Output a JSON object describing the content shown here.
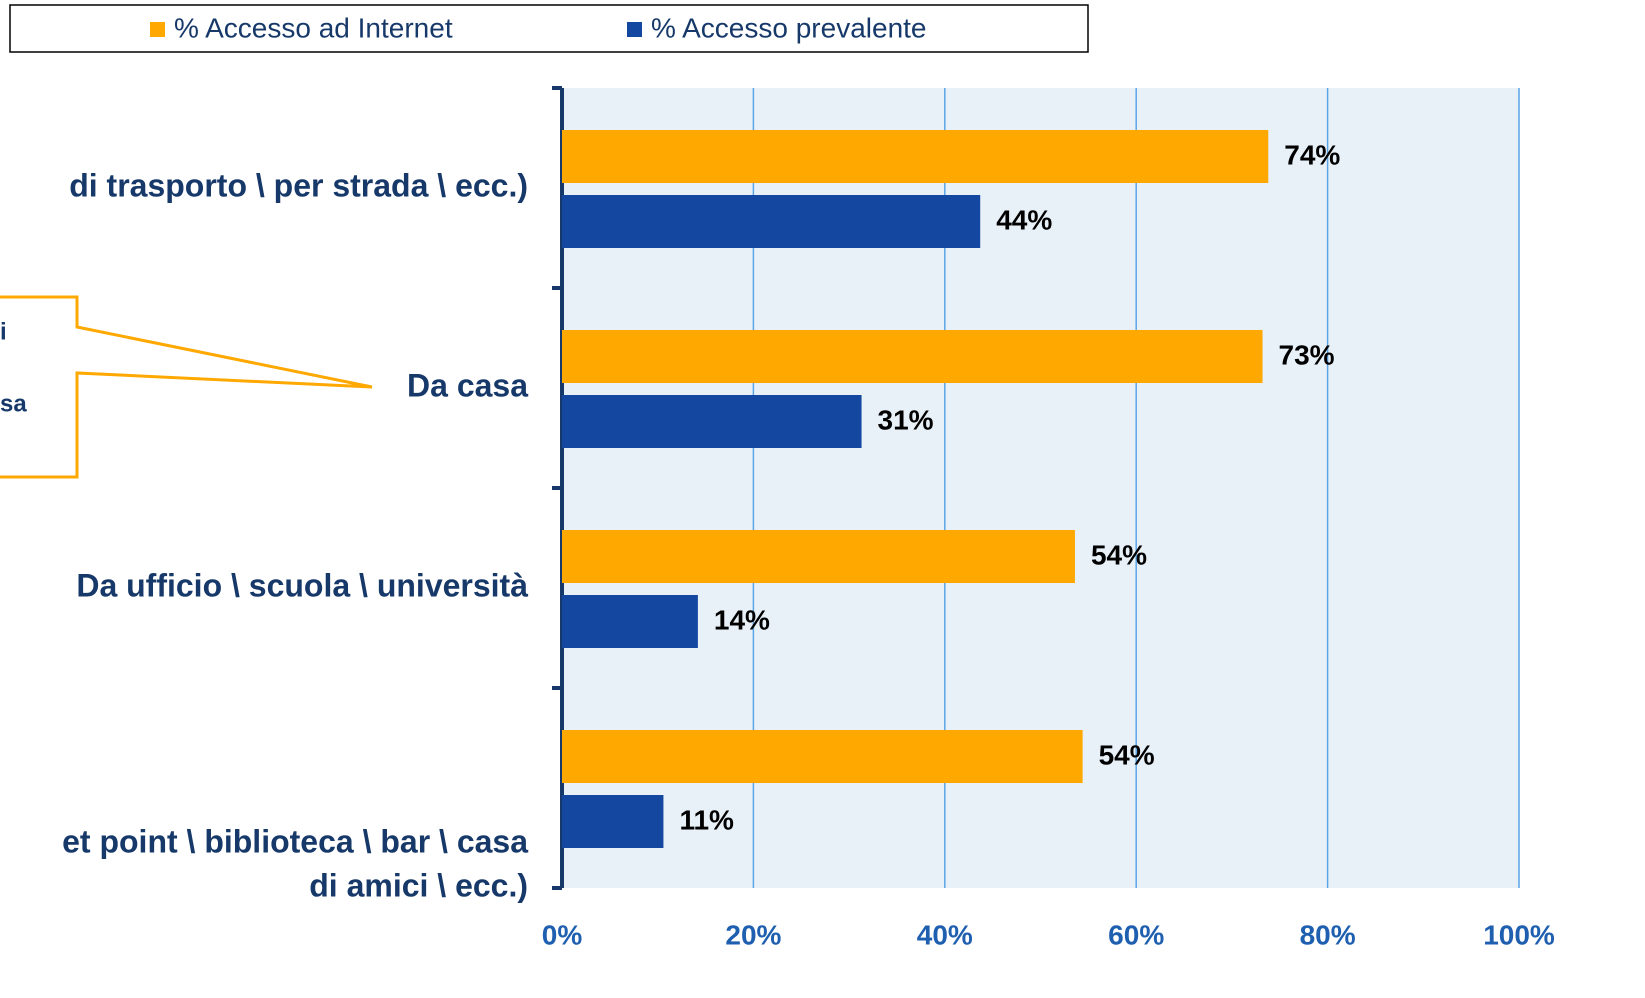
{
  "chart_data": {
    "type": "hbar",
    "categories": [
      "di trasporto \\ per strada \\ ecc.)",
      "Da casa",
      "Da ufficio \\ scuola \\ università",
      [
        "et point \\ biblioteca \\ bar \\ casa",
        "di amici \\ ecc.)"
      ]
    ],
    "series": [
      {
        "name": "% Accesso ad Internet",
        "color": "#ffa800",
        "values": [
          73.8,
          73.2,
          53.6,
          54.4
        ],
        "value_labels": [
          "74%",
          "73%",
          "54%",
          "54%"
        ]
      },
      {
        "name": "% Accesso prevalente",
        "color": "#1448a0",
        "values": [
          43.7,
          31.3,
          14.2,
          10.6
        ],
        "value_labels": [
          "44%",
          "31%",
          "14%",
          "11%"
        ]
      }
    ],
    "xlim": [
      0,
      100
    ],
    "xticks": [
      {
        "value": 0,
        "label": "0%"
      },
      {
        "value": 20,
        "label": "20%"
      },
      {
        "value": 40,
        "label": "40%"
      },
      {
        "value": 60,
        "label": "60%"
      },
      {
        "value": 80,
        "label": "80%"
      },
      {
        "value": 100,
        "label": "100%"
      }
    ],
    "grid": true,
    "legend": "top",
    "annotations": [
      "i",
      "sa"
    ]
  }
}
